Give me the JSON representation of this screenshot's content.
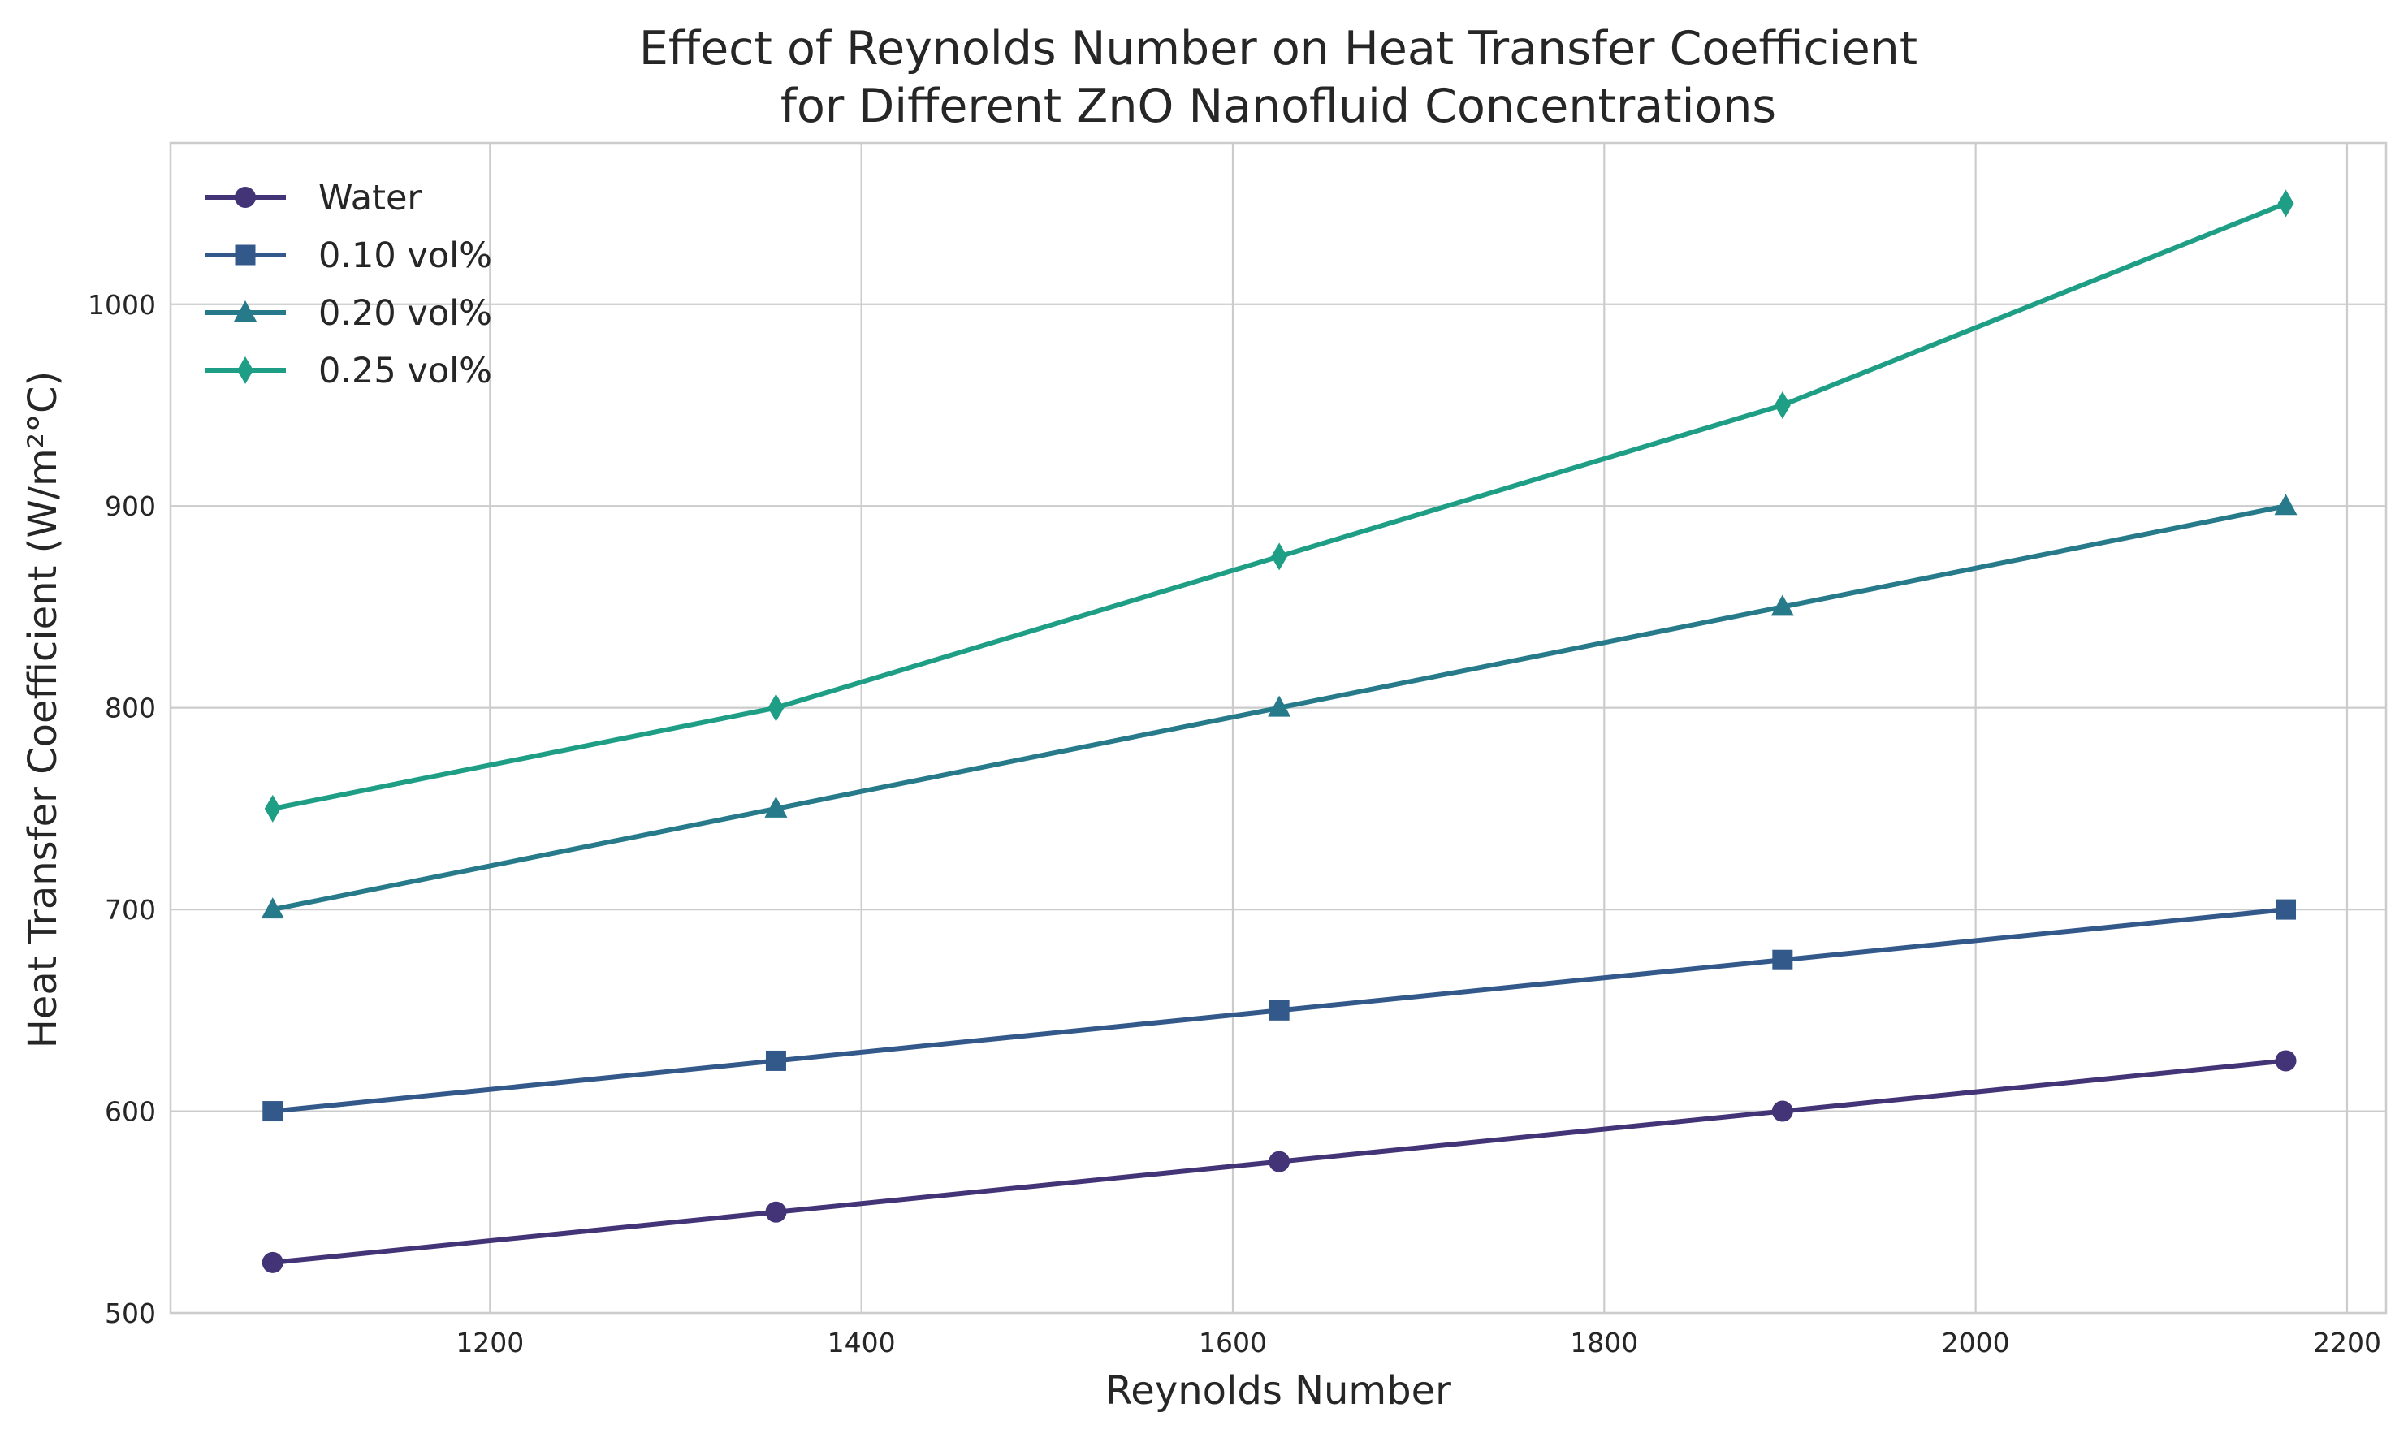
{
  "chart_data": {
    "type": "line",
    "title": "Effect of Reynolds Number on Heat Transfer Coefficient",
    "subtitle": "for Different ZnO Nanofluid Concentrations",
    "xlabel": "Reynolds Number",
    "ylabel": "Heat Transfer Coefficient (W/m²°C)",
    "x": [
      1083,
      1354,
      1625,
      1896,
      2167
    ],
    "xlim": [
      1028,
      2221
    ],
    "ylim": [
      500,
      1080
    ],
    "xticks": [
      1200,
      1400,
      1600,
      1800,
      2000,
      2200
    ],
    "yticks": [
      500,
      600,
      700,
      800,
      900,
      1000
    ],
    "grid": true,
    "legend": "top-left",
    "series": [
      {
        "name": "Water",
        "values": [
          525,
          550,
          575,
          600,
          625
        ],
        "color": "#433477",
        "marker": "circle"
      },
      {
        "name": "0.10 vol%",
        "values": [
          600,
          625,
          650,
          675,
          700
        ],
        "color": "#33598b",
        "marker": "square"
      },
      {
        "name": "0.20 vol%",
        "values": [
          700,
          750,
          800,
          850,
          900
        ],
        "color": "#267a8a",
        "marker": "triangle"
      },
      {
        "name": "0.25 vol%",
        "values": [
          750,
          800,
          875,
          950,
          1050
        ],
        "color": "#1f9e86",
        "marker": "diamond"
      }
    ]
  }
}
